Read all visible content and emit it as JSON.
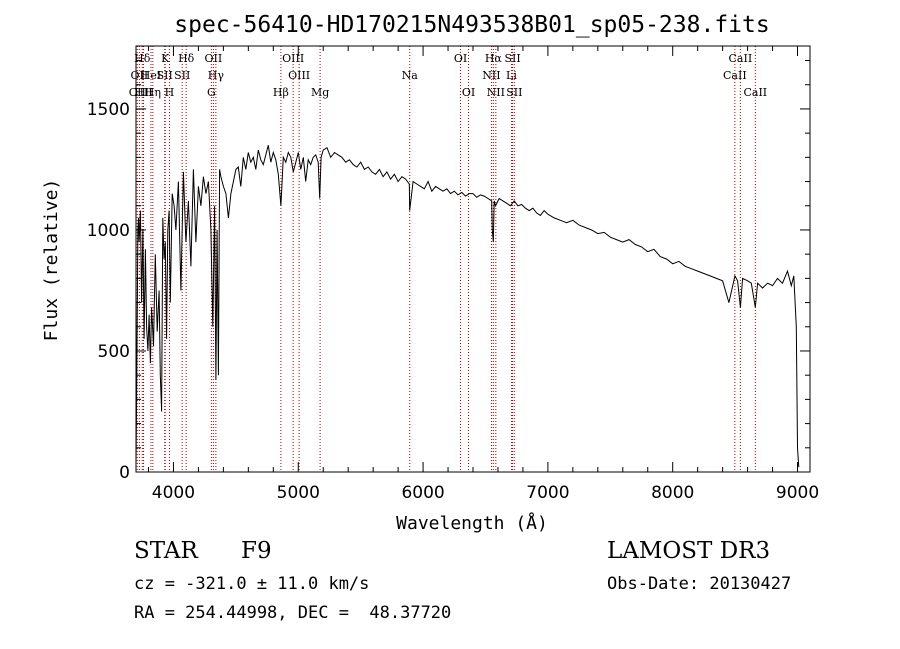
{
  "chart_data": {
    "type": "line",
    "title": "spec-56410-HD170215N493538B01_sp05-238.fits",
    "xlabel": "Wavelength (Å)",
    "ylabel": "Flux (relative)",
    "xlim": [
      3700,
      9100
    ],
    "ylim": [
      0,
      1760
    ],
    "xticks": [
      4000,
      5000,
      6000,
      7000,
      8000,
      9000
    ],
    "yticks": [
      0,
      500,
      1000,
      1500
    ],
    "series": [
      {
        "name": "spectrum",
        "x": [
          3700,
          3705,
          3715,
          3720,
          3725,
          3735,
          3745,
          3755,
          3765,
          3775,
          3785,
          3795,
          3805,
          3815,
          3825,
          3840,
          3855,
          3870,
          3885,
          3895,
          3905,
          3915,
          3925,
          3935,
          3945,
          3955,
          3965,
          3975,
          3990,
          4005,
          4020,
          4040,
          4060,
          4080,
          4100,
          4120,
          4140,
          4160,
          4180,
          4200,
          4220,
          4240,
          4260,
          4280,
          4300,
          4315,
          4330,
          4340,
          4350,
          4360,
          4370,
          4380,
          4400,
          4420,
          4440,
          4460,
          4480,
          4500,
          4520,
          4540,
          4560,
          4580,
          4600,
          4620,
          4640,
          4660,
          4680,
          4700,
          4720,
          4740,
          4760,
          4780,
          4800,
          4820,
          4840,
          4861,
          4880,
          4900,
          4920,
          4940,
          4960,
          4980,
          5000,
          5020,
          5040,
          5060,
          5080,
          5100,
          5120,
          5140,
          5160,
          5172,
          5183,
          5200,
          5230,
          5260,
          5290,
          5320,
          5350,
          5380,
          5410,
          5440,
          5470,
          5500,
          5530,
          5560,
          5590,
          5620,
          5650,
          5680,
          5710,
          5740,
          5770,
          5800,
          5830,
          5860,
          5890,
          5893,
          5920,
          5950,
          5980,
          6010,
          6040,
          6070,
          6100,
          6130,
          6160,
          6190,
          6220,
          6250,
          6280,
          6310,
          6340,
          6370,
          6400,
          6430,
          6460,
          6490,
          6520,
          6550,
          6555,
          6563,
          6570,
          6580,
          6610,
          6640,
          6670,
          6700,
          6730,
          6760,
          6790,
          6820,
          6850,
          6880,
          6910,
          6940,
          6970,
          7000,
          7050,
          7100,
          7150,
          7200,
          7250,
          7300,
          7350,
          7400,
          7450,
          7500,
          7550,
          7600,
          7650,
          7700,
          7750,
          7800,
          7850,
          7900,
          7950,
          8000,
          8050,
          8100,
          8150,
          8200,
          8250,
          8300,
          8350,
          8400,
          8450,
          8498,
          8520,
          8542,
          8560,
          8600,
          8630,
          8662,
          8680,
          8720,
          8760,
          8800,
          8840,
          8880,
          8920,
          8950,
          8970,
          8990,
          9000,
          9010
        ],
        "y": [
          30,
          300,
          1000,
          1050,
          950,
          1080,
          700,
          1000,
          550,
          920,
          600,
          500,
          650,
          450,
          680,
          520,
          900,
          580,
          750,
          400,
          250,
          1050,
          880,
          950,
          550,
          1000,
          1080,
          700,
          1150,
          1100,
          1000,
          1200,
          750,
          1240,
          950,
          1120,
          850,
          1250,
          950,
          1180,
          1100,
          1220,
          1150,
          1200,
          1000,
          600,
          1100,
          380,
          1000,
          400,
          1250,
          1220,
          1180,
          1150,
          1050,
          1150,
          1200,
          1250,
          1260,
          1180,
          1300,
          1250,
          1320,
          1280,
          1300,
          1250,
          1330,
          1290,
          1270,
          1310,
          1350,
          1280,
          1320,
          1290,
          1230,
          1100,
          1300,
          1280,
          1320,
          1300,
          1240,
          1280,
          1320,
          1250,
          1300,
          1200,
          1290,
          1270,
          1300,
          1310,
          1280,
          1130,
          1300,
          1330,
          1340,
          1300,
          1320,
          1310,
          1300,
          1280,
          1290,
          1270,
          1260,
          1280,
          1250,
          1260,
          1240,
          1230,
          1250,
          1220,
          1240,
          1210,
          1230,
          1200,
          1220,
          1210,
          1190,
          1080,
          1200,
          1190,
          1180,
          1170,
          1200,
          1160,
          1180,
          1170,
          1160,
          1170,
          1150,
          1160,
          1145,
          1155,
          1140,
          1150,
          1150,
          1135,
          1145,
          1140,
          1130,
          1120,
          1000,
          950,
          1120,
          1100,
          1130,
          1120,
          1110,
          1100,
          1120,
          1100,
          1105,
          1090,
          1080,
          1090,
          1070,
          1060,
          1080,
          1065,
          1050,
          1040,
          1030,
          1040,
          1020,
          1010,
          1000,
          985,
          990,
          970,
          960,
          950,
          960,
          940,
          930,
          910,
          920,
          890,
          880,
          860,
          870,
          850,
          840,
          830,
          820,
          810,
          800,
          790,
          700,
          810,
          790,
          680,
          800,
          790,
          780,
          680,
          780,
          760,
          780,
          770,
          800,
          780,
          830,
          770,
          810,
          600,
          100,
          20
        ],
        "color": "#000000"
      }
    ],
    "lines": [
      {
        "label": "OII",
        "x": 3727,
        "row": 2
      },
      {
        "label": "CII",
        "x": 3710,
        "row": 3
      },
      {
        "label": "HII",
        "x": 3760,
        "row": 3
      },
      {
        "label": "Hδ",
        "x": 3750,
        "row": 1
      },
      {
        "label": "HeI",
        "x": 3820,
        "row": 2
      },
      {
        "label": "Hη",
        "x": 3835,
        "row": 3
      },
      {
        "label": "K",
        "x": 3934,
        "row": 1
      },
      {
        "label": "SII",
        "x": 3930,
        "row": 2
      },
      {
        "label": "H",
        "x": 3968,
        "row": 3
      },
      {
        "label": "Hδ",
        "x": 4102,
        "row": 1
      },
      {
        "label": "SII",
        "x": 4070,
        "row": 2
      },
      {
        "label": "OII",
        "x": 4320,
        "row": 1
      },
      {
        "label": "Hγ",
        "x": 4340,
        "row": 2
      },
      {
        "label": "G",
        "x": 4304,
        "row": 3
      },
      {
        "label": "Hβ",
        "x": 4861,
        "row": 3
      },
      {
        "label": "OIII",
        "x": 4959,
        "row": 1
      },
      {
        "label": "OIII",
        "x": 5007,
        "row": 2
      },
      {
        "label": "Mg",
        "x": 5175,
        "row": 3
      },
      {
        "label": "Na",
        "x": 5893,
        "row": 2
      },
      {
        "label": "OI",
        "x": 6300,
        "row": 1
      },
      {
        "label": "OI",
        "x": 6364,
        "row": 3
      },
      {
        "label": "Hα",
        "x": 6563,
        "row": 1
      },
      {
        "label": "NII",
        "x": 6548,
        "row": 2
      },
      {
        "label": "NII",
        "x": 6583,
        "row": 3
      },
      {
        "label": "SII",
        "x": 6717,
        "row": 1
      },
      {
        "label": "Li",
        "x": 6708,
        "row": 2
      },
      {
        "label": "SII",
        "x": 6731,
        "row": 3
      },
      {
        "label": "CaII",
        "x": 8542,
        "row": 1
      },
      {
        "label": "CaII",
        "x": 8498,
        "row": 2
      },
      {
        "label": "CaII",
        "x": 8662,
        "row": 3
      }
    ]
  },
  "info": {
    "object_class": "STAR",
    "subclass": "F9",
    "survey": "LAMOST DR3",
    "cz": "cz = -321.0 ± 11.0 km/s",
    "obs_date": "Obs-Date: 20130427",
    "coords": "RA = 254.44998, DEC =  48.37720"
  }
}
